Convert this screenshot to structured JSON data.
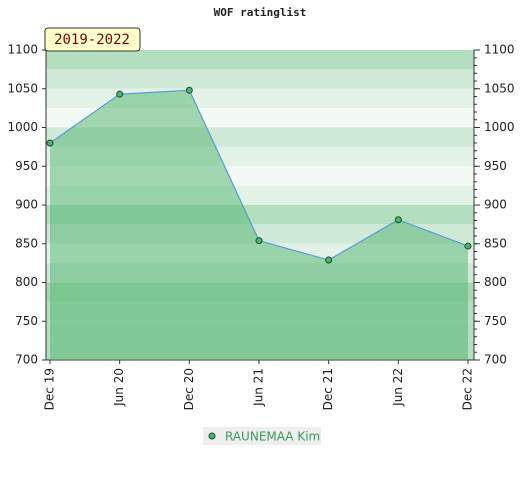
{
  "chart_data": {
    "type": "area",
    "title": "WOF ratinglist",
    "annotation": "2019-2022",
    "categories": [
      "Dec 19",
      "Jun 20",
      "Dec 20",
      "Jun 21",
      "Dec 21",
      "Jun 22",
      "Dec 22"
    ],
    "series": [
      {
        "name": "RAUNEMAA Kim",
        "color": "#4fb36e",
        "line_color": "#5b9bd5",
        "values": [
          980,
          1043,
          1048,
          854,
          829,
          881,
          847
        ]
      }
    ],
    "ylim": [
      700,
      1100
    ],
    "yticks": [
      700,
      750,
      800,
      850,
      900,
      950,
      1000,
      1050,
      1100
    ],
    "y2lim": [
      700,
      1100
    ],
    "y2ticks": [
      700,
      750,
      800,
      850,
      900,
      950,
      1000,
      1050,
      1100
    ],
    "legend": "bottom"
  }
}
